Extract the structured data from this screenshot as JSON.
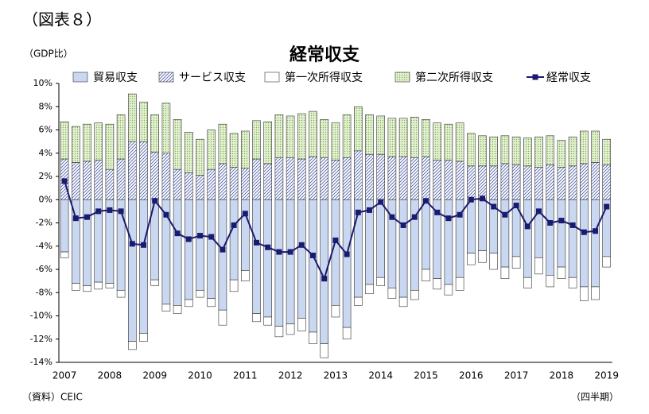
{
  "chart_data": {
    "type": "bar",
    "figure_label": "（図表８）",
    "title": "経常収支",
    "y_axis_label": "（GDP比）",
    "source": "（資料）CEIC",
    "x_axis_label": "（四半期）",
    "categories": [
      "2007",
      null,
      null,
      null,
      "2008",
      null,
      null,
      null,
      "2009",
      null,
      null,
      null,
      "2010",
      null,
      null,
      null,
      "2011",
      null,
      null,
      null,
      "2012",
      null,
      null,
      null,
      "2013",
      null,
      null,
      null,
      "2014",
      null,
      null,
      null,
      "2015",
      null,
      null,
      null,
      "2016",
      null,
      null,
      null,
      "2017",
      null,
      null,
      null,
      "2018",
      null,
      null,
      null,
      "2019"
    ],
    "stacked": true,
    "series": [
      {
        "name": "貿易収支",
        "color": "#c9d7f0",
        "pattern": "none",
        "values": [
          -4.5,
          -7.2,
          -7.4,
          -7.1,
          -7.2,
          -7.8,
          -12.2,
          -11.5,
          -6.9,
          -9.0,
          -9.1,
          -8.6,
          -7.8,
          -8.5,
          -9.5,
          -6.9,
          -6.1,
          -9.8,
          -10.1,
          -10.9,
          -10.7,
          -10.2,
          -11.4,
          -12.4,
          -9.1,
          -11.0,
          -8.4,
          -7.3,
          -6.7,
          -7.6,
          -8.4,
          -7.8,
          -6.0,
          -6.8,
          -7.3,
          -6.7,
          -4.6,
          -4.4,
          -4.6,
          -5.8,
          -4.9,
          -6.7,
          -5.0,
          -6.5,
          -5.8,
          -6.7,
          -7.5,
          -7.5,
          -4.9
        ]
      },
      {
        "name": "サービス収支",
        "color": "#4a5aa8",
        "pattern": "diagonal",
        "values": [
          3.5,
          3.2,
          3.3,
          3.4,
          2.6,
          3.5,
          5.0,
          5.0,
          4.1,
          4.0,
          2.6,
          2.3,
          2.1,
          2.6,
          3.1,
          2.8,
          2.7,
          3.5,
          3.1,
          3.6,
          3.6,
          3.5,
          3.7,
          3.6,
          3.4,
          3.6,
          4.2,
          3.9,
          3.9,
          3.7,
          3.7,
          3.6,
          3.7,
          3.4,
          3.4,
          3.3,
          2.9,
          2.9,
          2.9,
          3.1,
          3.0,
          2.9,
          2.8,
          3.0,
          2.8,
          2.9,
          3.1,
          3.2,
          3.0
        ]
      },
      {
        "name": "第一次所得収支",
        "color": "#ffffff",
        "pattern": "none",
        "values": [
          -0.5,
          -0.6,
          -0.5,
          -0.6,
          -0.4,
          -0.6,
          -0.7,
          -0.7,
          -0.5,
          -0.6,
          -0.7,
          -0.6,
          -0.6,
          -0.7,
          -1.3,
          -1.0,
          -0.9,
          -0.7,
          -0.7,
          -0.9,
          -0.9,
          -1.1,
          -1.0,
          -1.2,
          -1.0,
          -1.0,
          -0.7,
          -0.8,
          -0.7,
          -0.9,
          -0.8,
          -0.8,
          -1.0,
          -0.9,
          -0.9,
          -1.1,
          -1.0,
          -1.0,
          -1.4,
          -1.0,
          -1.0,
          -0.9,
          -1.4,
          -1.0,
          -1.0,
          -0.9,
          -1.2,
          -1.1,
          -0.9
        ]
      },
      {
        "name": "第二次所得収支",
        "color": "#7fb04c",
        "pattern": "dots",
        "values": [
          3.2,
          3.1,
          3.2,
          3.2,
          3.9,
          3.8,
          4.1,
          3.4,
          3.2,
          4.3,
          4.3,
          3.5,
          3.1,
          3.4,
          3.4,
          2.9,
          3.2,
          3.3,
          3.6,
          3.7,
          3.6,
          3.9,
          3.9,
          3.3,
          3.2,
          3.7,
          3.8,
          3.4,
          3.3,
          3.3,
          3.3,
          3.5,
          3.2,
          3.2,
          3.1,
          3.3,
          2.8,
          2.6,
          2.5,
          2.4,
          2.4,
          2.4,
          2.6,
          2.5,
          2.3,
          2.5,
          2.8,
          2.7,
          2.2
        ]
      },
      {
        "name": "経常収支",
        "type": "line",
        "color": "#1a1a70",
        "values": [
          1.6,
          -1.6,
          -1.5,
          -1.0,
          -0.9,
          -1.0,
          -3.8,
          -3.9,
          -0.1,
          -1.3,
          -2.9,
          -3.4,
          -3.1,
          -3.2,
          -4.3,
          -2.2,
          -1.2,
          -3.7,
          -4.1,
          -4.5,
          -4.5,
          -3.9,
          -4.8,
          -6.8,
          -3.5,
          -4.7,
          -1.1,
          -0.9,
          -0.2,
          -1.5,
          -2.2,
          -1.5,
          -0.1,
          -1.1,
          -1.6,
          -1.3,
          0.0,
          0.1,
          -0.6,
          -1.3,
          -0.5,
          -2.3,
          -1.0,
          -2.0,
          -1.8,
          -2.2,
          -2.8,
          -2.7,
          -0.6
        ]
      }
    ],
    "ylim": [
      -14,
      10
    ],
    "yticks": [
      {
        "value": -14,
        "label": "-14%"
      },
      {
        "value": -12,
        "label": "-12%"
      },
      {
        "value": -10,
        "label": "-10%"
      },
      {
        "value": -8,
        "label": "-8%"
      },
      {
        "value": -6,
        "label": "-6%"
      },
      {
        "value": -4,
        "label": "-4%"
      },
      {
        "value": -2,
        "label": "-2%"
      },
      {
        "value": 0,
        "label": "0%"
      },
      {
        "value": 2,
        "label": "2%"
      },
      {
        "value": 4,
        "label": "4%"
      },
      {
        "value": 6,
        "label": "6%"
      },
      {
        "value": 8,
        "label": "8%"
      },
      {
        "value": 10,
        "label": "10%"
      }
    ],
    "grid": false,
    "legend": "top"
  }
}
